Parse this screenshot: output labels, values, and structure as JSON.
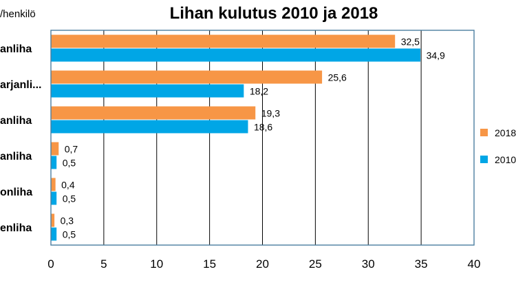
{
  "chart_data": {
    "type": "bar",
    "orientation": "horizontal",
    "title": "Lihan kulutus 2010 ja 2018",
    "unit_label": "/henkilö",
    "categories": [
      "anliha",
      "arjanli...",
      "anliha",
      "anliha",
      "onliha",
      "enliha"
    ],
    "series": [
      {
        "name": "2018",
        "color": "#f79646",
        "values": [
          32.5,
          25.6,
          19.3,
          0.7,
          0.4,
          0.3
        ],
        "labels": [
          "32,5",
          "25,6",
          "19,3",
          "0,7",
          "0,4",
          "0,3"
        ]
      },
      {
        "name": "2010",
        "color": "#00a6e6",
        "values": [
          34.9,
          18.2,
          18.6,
          0.5,
          0.5,
          0.5
        ],
        "labels": [
          "34,9",
          "18,2",
          "18,6",
          "0,5",
          "0,5",
          "0,5"
        ]
      }
    ],
    "xlim": [
      0,
      40
    ],
    "xticks": [
      0,
      5,
      10,
      15,
      20,
      25,
      30,
      35,
      40
    ],
    "grid": true,
    "legend_position": "right"
  }
}
